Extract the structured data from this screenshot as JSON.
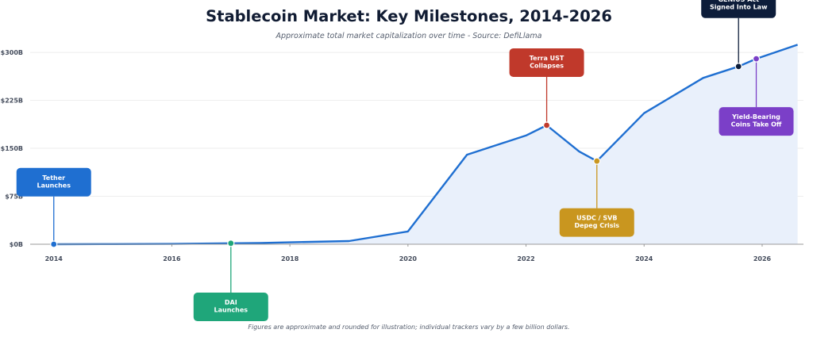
{
  "title": "Stablecoin Market: Key Milestones, 2014-2026",
  "subtitle": "Approximate total market capitalization over time  -  Source: DefiLlama",
  "footnote": "Figures are approximate and rounded for illustration; individual trackers vary by a few billion dollars.",
  "chart_data": {
    "type": "area",
    "xlim": [
      2013.6,
      2026.7
    ],
    "ylim": [
      0,
      310
    ],
    "x_ticks": [
      2014,
      2016,
      2018,
      2020,
      2022,
      2024,
      2026
    ],
    "x_tick_labels": [
      "2014",
      "2016",
      "2018",
      "2020",
      "2022",
      "2024",
      "2026"
    ],
    "y_ticks": [
      0,
      75,
      150,
      225,
      300
    ],
    "y_tick_labels": [
      "$0B",
      "$75B",
      "$150B",
      "$225B",
      "$300B"
    ],
    "grid": "horizontal",
    "colors": {
      "line": "#1f6fd1",
      "fill": "#e9f0fb",
      "grid": "#eeeeee",
      "axis": "#999999"
    },
    "series": [
      {
        "x": [
          2014.0,
          2015.0,
          2016.0,
          2017.0,
          2017.5,
          2018.0,
          2019.0,
          2020.0,
          2021.0,
          2022.0,
          2022.35,
          2022.9,
          2023.2,
          2024.0,
          2025.0,
          2025.6,
          2025.9,
          2026.6
        ],
        "y": [
          0,
          0.2,
          0.5,
          1.5,
          2,
          3,
          5,
          20,
          140,
          170,
          186,
          145,
          130,
          205,
          260,
          278,
          290,
          312
        ]
      }
    ],
    "milestones": [
      {
        "label": [
          "Tether",
          "Launches"
        ],
        "x": 2014.0,
        "y": 0,
        "box_y": 97,
        "position": "above",
        "color": "#1f6fd1",
        "dot": "#1f6fd1"
      },
      {
        "label": [
          "DAI",
          "Launches"
        ],
        "x": 2017.0,
        "y": 1.5,
        "box_y": -98,
        "position": "below",
        "color": "#1fa67a",
        "dot": "#1fa67a"
      },
      {
        "label": [
          "Terra UST",
          "Collapses"
        ],
        "x": 2022.35,
        "y": 186,
        "box_y": 284,
        "position": "above",
        "color": "#c0392b",
        "dot": "#c0392b"
      },
      {
        "label": [
          "USDC / SVB",
          "Depeg Crisis"
        ],
        "x": 2023.2,
        "y": 130,
        "box_y": 34,
        "position": "below",
        "color": "#c9961f",
        "dot": "#c9961f"
      },
      {
        "label": [
          "GENIUS Act",
          "Signed Into Law"
        ],
        "x": 2025.6,
        "y": 278,
        "box_y": 376,
        "position": "above",
        "color": "#0d1d3a",
        "dot": "#0d1d3a"
      },
      {
        "label": [
          "Yield-Bearing",
          "Coins Take Off"
        ],
        "x": 2025.9,
        "y": 290,
        "box_y": 192,
        "position": "below",
        "color": "#7b3fc8",
        "dot": "#7b3fc8"
      }
    ]
  }
}
